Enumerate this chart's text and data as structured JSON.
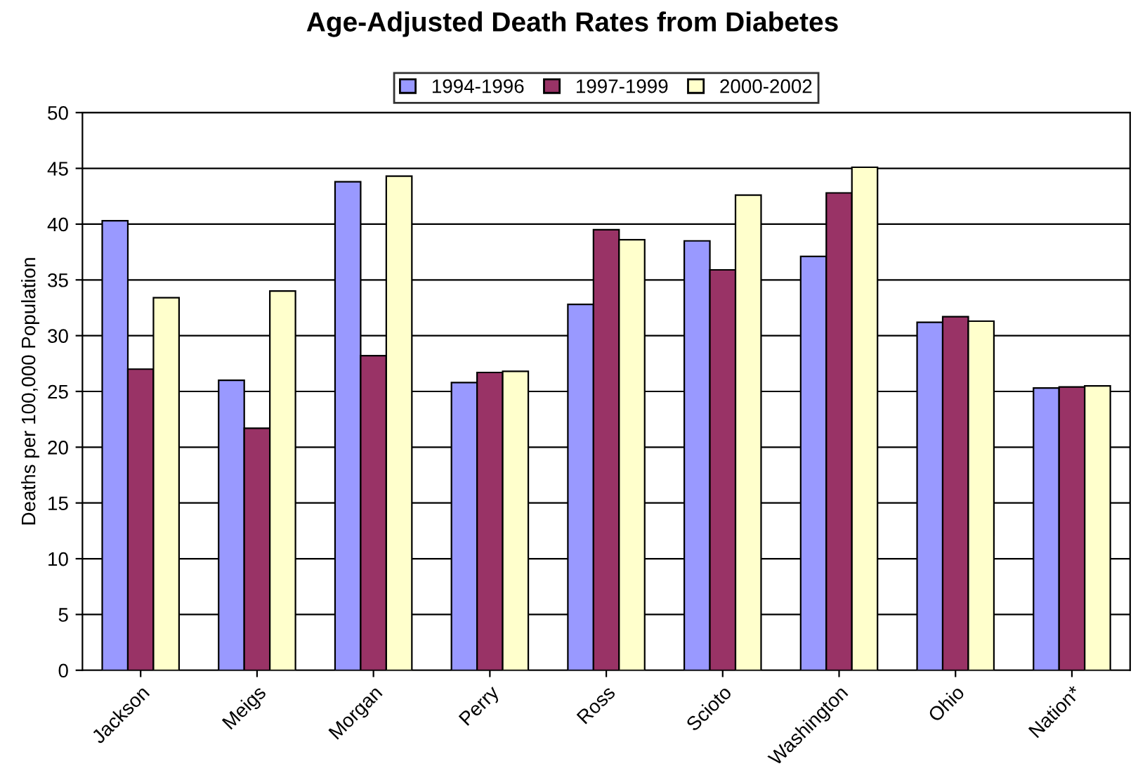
{
  "chart_data": {
    "type": "bar",
    "title": "Age-Adjusted Death Rates from Diabetes",
    "ylabel": "Deaths per 100,000 Population",
    "categories": [
      "Jackson",
      "Meigs",
      "Morgan",
      "Perry",
      "Ross",
      "Scioto",
      "Washington",
      "Ohio",
      "Nation*"
    ],
    "series": [
      {
        "name": "1994-1996",
        "color": "#9999ff",
        "values": [
          40.3,
          26.0,
          43.8,
          25.8,
          32.8,
          38.5,
          37.1,
          31.2,
          25.3
        ]
      },
      {
        "name": "1997-1999",
        "color": "#993366",
        "values": [
          27.0,
          21.7,
          28.2,
          26.7,
          39.5,
          35.9,
          42.8,
          31.7,
          25.4
        ]
      },
      {
        "name": "2000-2002",
        "color": "#ffffcc",
        "values": [
          33.4,
          34.0,
          44.3,
          26.8,
          38.6,
          42.6,
          45.1,
          31.3,
          25.5
        ]
      }
    ],
    "ylim": [
      0,
      50
    ],
    "yticks": [
      0,
      5,
      10,
      15,
      20,
      25,
      30,
      35,
      40,
      45,
      50
    ],
    "grid": "y",
    "legend": "top"
  }
}
